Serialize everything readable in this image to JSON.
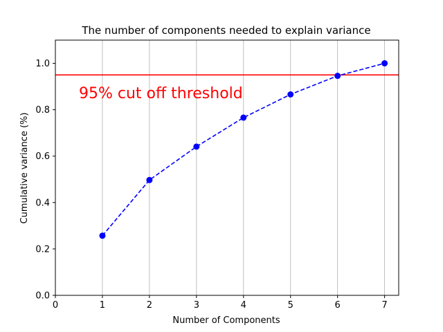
{
  "chart_data": {
    "type": "line",
    "title": "The number of components needed to explain variance",
    "xlabel": "Number of Components",
    "ylabel": "Cumulative variance (%)",
    "x": [
      1,
      2,
      3,
      4,
      5,
      6,
      7
    ],
    "series": [
      {
        "values": [
          0.257,
          0.497,
          0.641,
          0.766,
          0.866,
          0.946,
          1.0
        ],
        "color": "#0000ff",
        "style": "dashed",
        "marker": "circle"
      }
    ],
    "xlim": [
      0,
      7.3
    ],
    "ylim": [
      0,
      1.1
    ],
    "xticks": [
      "0",
      "1",
      "2",
      "3",
      "4",
      "5",
      "6",
      "7"
    ],
    "yticks": [
      "0.0",
      "0.2",
      "0.4",
      "0.6",
      "0.8",
      "1.0"
    ],
    "grid": "vertical",
    "threshold": {
      "value": 0.95,
      "color": "#ff0000",
      "label": "95% cut off threshold",
      "label_x": 0.5,
      "label_y": 0.85
    }
  }
}
